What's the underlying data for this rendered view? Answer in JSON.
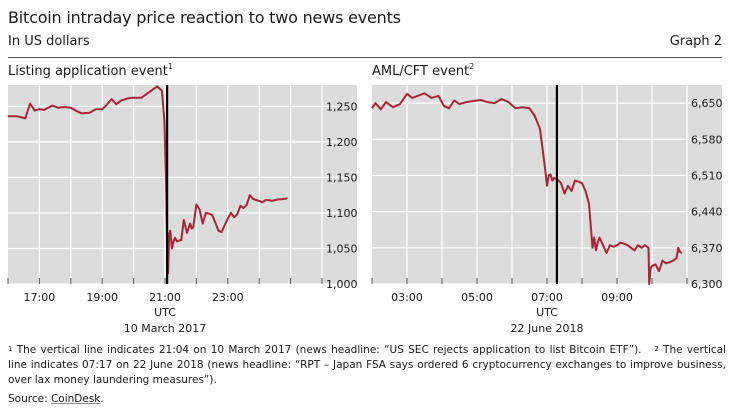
{
  "header": {
    "title": "Bitcoin intraday price reaction to two news events",
    "subtitle": "In US dollars",
    "graph_number": "Graph 2"
  },
  "colors": {
    "line": "#a8243a",
    "plot_bg": "#dcdcdc",
    "grid": "#ffffff",
    "event_line": "#000000"
  },
  "chart_data": [
    {
      "type": "line",
      "title": "Listing application event",
      "footnote_marker": "1",
      "xlabel": "UTC",
      "date_label": "10 March 2017",
      "x_unit": "hours UTC",
      "xlim": [
        16.0,
        26.0
      ],
      "ylim": [
        1000,
        1280
      ],
      "y_ticks": [
        1000,
        1050,
        1100,
        1150,
        1200,
        1250
      ],
      "y_tick_labels": [
        "1,000",
        "1,050",
        "1,100",
        "1,150",
        "1,200",
        "1,250"
      ],
      "x_ticks": [
        17,
        19,
        21,
        23
      ],
      "x_tick_labels": [
        "17:00",
        "19:00",
        "21:00",
        "23:00"
      ],
      "event_time": 21.067,
      "grid": true,
      "series": [
        {
          "name": "Bitcoin price",
          "x": [
            16.0,
            16.3,
            16.55,
            16.7,
            16.85,
            17.0,
            17.15,
            17.4,
            17.6,
            17.8,
            18.0,
            18.2,
            18.35,
            18.6,
            18.8,
            19.0,
            19.1,
            19.3,
            19.45,
            19.6,
            19.8,
            19.95,
            20.05,
            20.15,
            20.25,
            20.5,
            20.75,
            20.9,
            20.98,
            21.03,
            21.05,
            21.07,
            21.1,
            21.13,
            21.17,
            21.22,
            21.27,
            21.32,
            21.38,
            21.45,
            21.52,
            21.6,
            21.7,
            21.8,
            21.85,
            21.9,
            22.0,
            22.1,
            22.2,
            22.3,
            22.4,
            22.5,
            22.55,
            22.6,
            22.7,
            22.8,
            22.9,
            23.0,
            23.1,
            23.2,
            23.3,
            23.4,
            23.5,
            23.6,
            23.7,
            23.8,
            23.9,
            24.0,
            24.1,
            24.2,
            24.3,
            24.4,
            24.5,
            24.6,
            24.7,
            24.8,
            24.85,
            24.9
          ],
          "y": [
            1236,
            1236,
            1233,
            1254,
            1244,
            1246,
            1245,
            1251,
            1248,
            1249,
            1248,
            1243,
            1240,
            1241,
            1246,
            1246,
            1250,
            1260,
            1253,
            1258,
            1261,
            1262,
            1262,
            1262,
            1262,
            1270,
            1278,
            1272,
            1230,
            1150,
            1090,
            1035,
            1015,
            1070,
            1075,
            1050,
            1060,
            1065,
            1060,
            1061,
            1062,
            1090,
            1072,
            1085,
            1078,
            1080,
            1112,
            1105,
            1085,
            1100,
            1099,
            1097,
            1092,
            1087,
            1075,
            1073,
            1083,
            1092,
            1100,
            1094,
            1098,
            1110,
            1107,
            1111,
            1125,
            1120,
            1118,
            1117,
            1115,
            1118,
            1118,
            1117,
            1118,
            1119,
            1119,
            1120,
            1120,
            1121
          ]
        }
      ]
    },
    {
      "type": "line",
      "title": "AML/CFT event",
      "footnote_marker": "2",
      "xlabel": "UTC",
      "date_label": "22 June 2018",
      "x_unit": "hours UTC",
      "xlim": [
        2.0,
        11.0
      ],
      "ylim": [
        6300,
        6685
      ],
      "y_ticks": [
        6300,
        6370,
        6440,
        6510,
        6580,
        6650
      ],
      "y_tick_labels": [
        "6,300",
        "6,370",
        "6,440",
        "6,510",
        "6,580",
        "6,650"
      ],
      "x_ticks": [
        3,
        5,
        7,
        9
      ],
      "x_tick_labels": [
        "03:00",
        "05:00",
        "07:00",
        "09:00"
      ],
      "event_time": 7.283,
      "grid": true,
      "series": [
        {
          "name": "Bitcoin price",
          "x": [
            2.0,
            2.1,
            2.25,
            2.4,
            2.6,
            2.8,
            3.0,
            3.15,
            3.3,
            3.5,
            3.7,
            3.9,
            4.05,
            4.2,
            4.35,
            4.5,
            4.7,
            4.9,
            5.1,
            5.3,
            5.5,
            5.7,
            5.9,
            6.1,
            6.3,
            6.5,
            6.65,
            6.8,
            6.95,
            7.0,
            7.05,
            7.1,
            7.15,
            7.2,
            7.3,
            7.4,
            7.5,
            7.6,
            7.7,
            7.8,
            7.9,
            8.0,
            8.1,
            8.2,
            8.3,
            8.35,
            8.4,
            8.45,
            8.5,
            8.6,
            8.7,
            8.8,
            8.9,
            9.0,
            9.1,
            9.2,
            9.3,
            9.4,
            9.5,
            9.6,
            9.7,
            9.8,
            9.9,
            9.92,
            9.96,
            10.0,
            10.1,
            10.2,
            10.3,
            10.4,
            10.5,
            10.6,
            10.7,
            10.75,
            10.8,
            10.85
          ],
          "y": [
            6640,
            6650,
            6638,
            6652,
            6642,
            6648,
            6668,
            6660,
            6664,
            6669,
            6660,
            6664,
            6645,
            6640,
            6655,
            6648,
            6652,
            6654,
            6656,
            6652,
            6650,
            6658,
            6652,
            6640,
            6642,
            6640,
            6625,
            6600,
            6520,
            6490,
            6510,
            6512,
            6500,
            6505,
            6502,
            6495,
            6475,
            6490,
            6480,
            6500,
            6498,
            6495,
            6480,
            6455,
            6370,
            6390,
            6365,
            6380,
            6390,
            6375,
            6360,
            6375,
            6372,
            6375,
            6380,
            6378,
            6375,
            6370,
            6365,
            6375,
            6370,
            6375,
            6370,
            6300,
            6330,
            6335,
            6338,
            6325,
            6345,
            6340,
            6342,
            6345,
            6350,
            6370,
            6362,
            6360
          ]
        }
      ]
    }
  ],
  "footnotes": {
    "marker1": "1",
    "text1": "The vertical line indicates 21:04 on 10 March 2017 (news headline: “US SEC rejects application to list Bitcoin ETF”).",
    "marker2": "2",
    "text2": "The vertical line indicates 07:17 on 22 June 2018 (news headline: “RPT – Japan FSA says ordered 6 cryptocurrency exchanges to improve business, over lax money laundering measures”)."
  },
  "source": {
    "prefix": "Source: ",
    "link": "CoinDesk",
    "suffix": "."
  }
}
